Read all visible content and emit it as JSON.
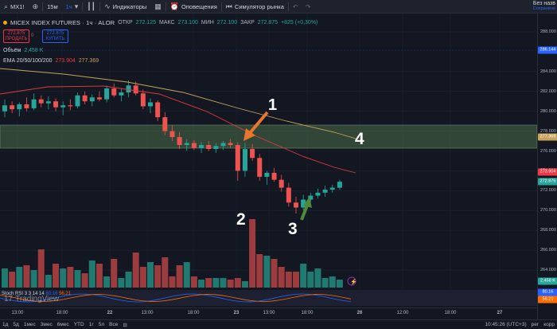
{
  "toolbar": {
    "symbol": "MX1!",
    "intervals": [
      "15м",
      "1ч"
    ],
    "indicators": "Индикаторы",
    "alerts": "Оповещения",
    "replay": "Симулятор рынка",
    "unnamed_title": "Без назв",
    "unnamed_sub": "Сохранено"
  },
  "legend": {
    "title": "MICEX INDEX FUTURES · 1ч · ALOR",
    "o_label": "ОТКР",
    "o_val": "272.125",
    "h_label": "МАКС",
    "h_val": "273.100",
    "l_label": "МИН",
    "l_val": "272.100",
    "c_label": "ЗАКР",
    "c_val": "272.875",
    "change": "+825 (+0,30%)",
    "sell_price": "272.875",
    "sell_label": "ПРОДАТЬ",
    "spread": "0",
    "buy_price": "272.875",
    "buy_label": "КУПИТЬ",
    "volume_label": "Объём",
    "volume_val": "2,458 K",
    "ema_label": "EMA 20/50/100/200",
    "ema_v1": "273.904",
    "ema_v2": "277.369"
  },
  "price_axis": {
    "ticks": [
      "288.000",
      "284.000",
      "282.000",
      "280.000",
      "278.000",
      "276.000",
      "274.000",
      "272.000",
      "270.000",
      "268.000",
      "266.000",
      "264.000"
    ],
    "tag_top": "286.144",
    "tag_ema200": "277.369",
    "tag_ema50": "273.904",
    "tag_last": "272.875",
    "tag_vol": "2,458 K",
    "tag_stoch_k": "80.16",
    "tag_stoch_d": "56.21"
  },
  "time_axis": [
    "13:00",
    "18:00",
    "22",
    "13:00",
    "18:00",
    "23",
    "13:00",
    "18:00",
    "26",
    "12:00",
    "18:00",
    "27"
  ],
  "stoch": {
    "label": "Stoch RSI",
    "params": "3 3 14 14",
    "k": "80,16",
    "d": "56,21"
  },
  "branding": "TradingView",
  "bottom": {
    "ranges": [
      "1д",
      "5д",
      "1мес",
      "3мес",
      "6мес",
      "YTD",
      "1г",
      "5л",
      "Все"
    ],
    "clock": "10:45:26 (UTC+3)",
    "scale": "рег",
    "auto": "корр"
  },
  "annotations": [
    "1",
    "2",
    "3",
    "4"
  ],
  "colors": {
    "bull": "#26a69a",
    "bear": "#ef5350",
    "ema50": "#f23645",
    "ema200": "#c8a35a",
    "zone": "#4d6e4a",
    "arrow_orange": "#e8762d",
    "arrow_green": "#4f8a3a"
  }
}
